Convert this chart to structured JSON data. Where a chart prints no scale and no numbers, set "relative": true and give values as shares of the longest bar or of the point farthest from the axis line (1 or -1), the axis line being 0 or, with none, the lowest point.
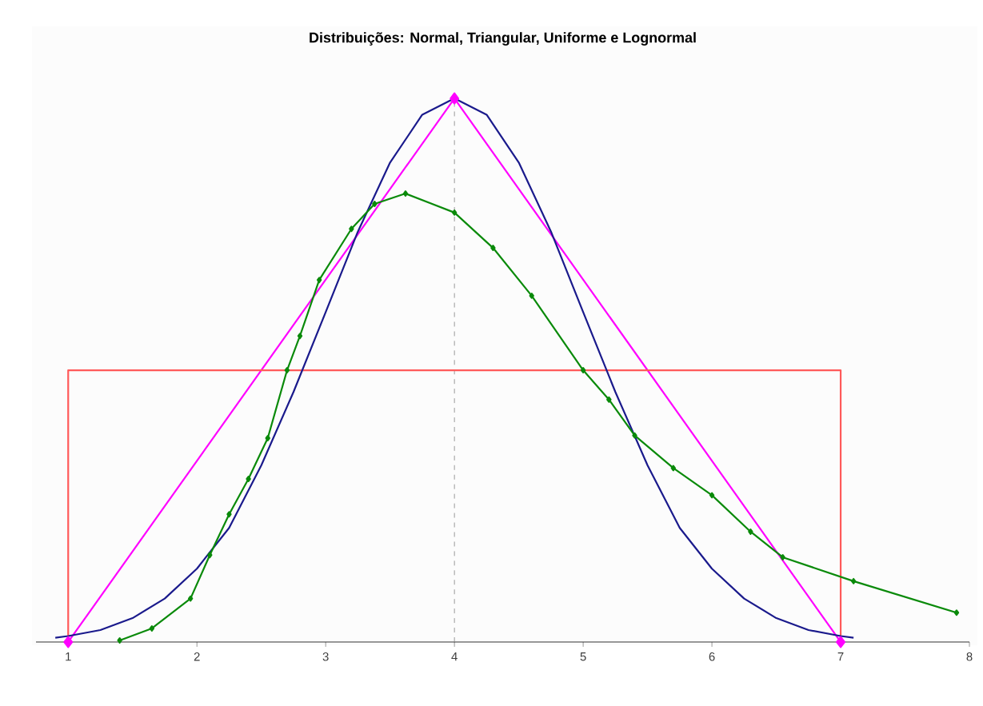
{
  "chart_data": {
    "type": "line",
    "title": "Distribuições: Normal, Triangular, Uniforme e Lognormal",
    "relative": true,
    "xlim": [
      0.75,
      8
    ],
    "xticks": [
      1,
      2,
      3,
      4,
      5,
      6,
      7,
      8
    ],
    "grid": false,
    "series": [
      {
        "color": "#1a1a8c",
        "marker": "none",
        "x": [
          0.9,
          1.0,
          1.25,
          1.5,
          1.75,
          2.0,
          2.25,
          2.5,
          2.75,
          3.0,
          3.25,
          3.5,
          3.75,
          4.0,
          4.25,
          4.5,
          4.75,
          5.0,
          5.25,
          5.5,
          5.75,
          6.0,
          6.25,
          6.5,
          6.75,
          7.0,
          7.1
        ],
        "values": [
          0.008,
          0.011,
          0.022,
          0.044,
          0.08,
          0.135,
          0.21,
          0.325,
          0.46,
          0.607,
          0.755,
          0.882,
          0.97,
          1.0,
          0.97,
          0.882,
          0.755,
          0.607,
          0.46,
          0.325,
          0.21,
          0.135,
          0.08,
          0.044,
          0.022,
          0.011,
          0.008
        ]
      },
      {
        "color": "#ff00ff",
        "marker": "diamond",
        "x": [
          1,
          4,
          7
        ],
        "values": [
          0,
          1,
          0
        ]
      },
      {
        "color": "#ff5a5a",
        "marker": "none",
        "x": [
          1,
          1,
          7,
          7
        ],
        "values": [
          0,
          0.5,
          0.5,
          0
        ]
      },
      {
        "color": "#0a8a0a",
        "marker": "diamond",
        "x": [
          1.4,
          1.65,
          1.95,
          2.1,
          2.25,
          2.4,
          2.55,
          2.7,
          2.8,
          2.95,
          3.2,
          3.38,
          3.62,
          4.0,
          4.3,
          4.6,
          5.0,
          5.2,
          5.4,
          5.7,
          6.0,
          6.3,
          6.55,
          7.1,
          7.9
        ],
        "values": [
          0.003,
          0.025,
          0.08,
          0.16,
          0.235,
          0.3,
          0.375,
          0.5,
          0.563,
          0.666,
          0.76,
          0.806,
          0.825,
          0.79,
          0.725,
          0.637,
          0.5,
          0.446,
          0.38,
          0.32,
          0.27,
          0.203,
          0.156,
          0.112,
          0.054
        ]
      }
    ],
    "ref_lines": [
      {
        "axis": "x",
        "value": 4,
        "color": "#808080",
        "line_style": "dashed"
      }
    ]
  }
}
